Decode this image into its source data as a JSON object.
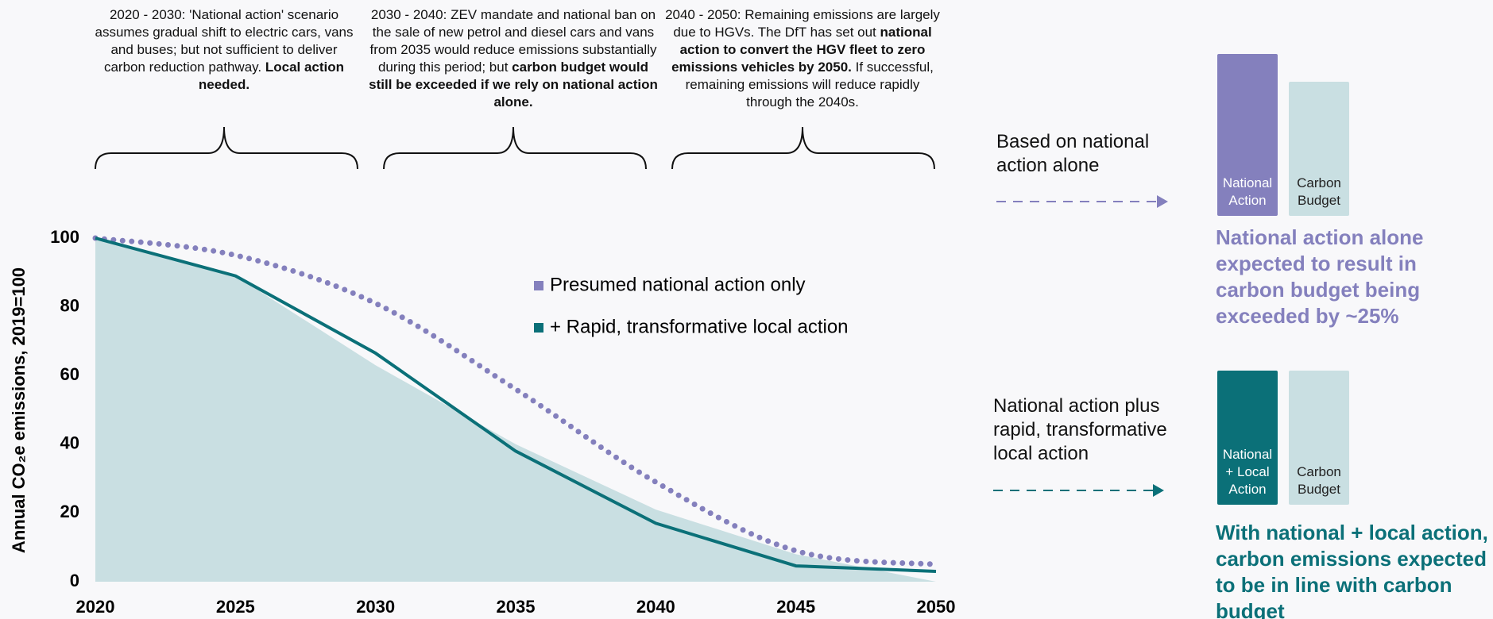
{
  "chart_data": {
    "type": "line",
    "y_label": "Annual CO₂e emissions, 2019=100",
    "x": [
      2020,
      2025,
      2030,
      2035,
      2040,
      2045,
      2050
    ],
    "xlim": [
      2020,
      2050
    ],
    "xticks": [
      2020,
      2025,
      2030,
      2035,
      2040,
      2045,
      2050
    ],
    "ylim": [
      0,
      100
    ],
    "yticks": [
      0,
      20,
      40,
      60,
      80,
      100
    ],
    "area": {
      "color": "#c9dfe2",
      "values": [
        100,
        89,
        63,
        40,
        21,
        8,
        0
      ]
    },
    "series": [
      {
        "name": "Presumed national action only",
        "color": "#8480bd",
        "style": "dotted",
        "values": [
          100,
          95,
          81,
          56,
          29,
          9,
          5
        ]
      },
      {
        "name": "+ Rapid, transformative local action",
        "color": "#0b7078",
        "style": "solid",
        "values": [
          100,
          89,
          66.5,
          38,
          17,
          4.6,
          3
        ]
      }
    ]
  },
  "annotations": [
    {
      "runs": [
        {
          "text": "2020 - 2030: 'National action' scenario assumes gradual shift to electric cars, vans and buses; but not sufficient to deliver carbon reduction pathway. ",
          "bold": false
        },
        {
          "text": "Local action needed.",
          "bold": true
        }
      ]
    },
    {
      "runs": [
        {
          "text": "2030 - 2040: ZEV mandate and national ban on the sale of new petrol and diesel cars and vans from 2035 would reduce emissions substantially during this period; but ",
          "bold": false
        },
        {
          "text": "carbon budget would still be exceeded if we rely on national action alone.",
          "bold": true
        }
      ]
    },
    {
      "runs": [
        {
          "text": "2040 - 2050: Remaining emissions are largely due to HGVs. The DfT has set out ",
          "bold": false
        },
        {
          "text": "national action to convert the HGV fleet to zero emissions vehicles by 2050.",
          "bold": true
        },
        {
          "text": " If successful, remaining emissions will reduce rapidly through the 2040s.",
          "bold": false
        }
      ]
    }
  ],
  "panels": [
    {
      "text": "Based on national action alone",
      "color": "#8480bd",
      "bars": [
        {
          "label": "National Action",
          "value": 121,
          "color": "#8480bd",
          "text_color": "#ffffff"
        },
        {
          "label": "Carbon Budget",
          "value": 100,
          "color": "#c9dfe2",
          "text_color": "#222222"
        }
      ],
      "conclusion": "National action alone expected to result in carbon budget being exceeded by ~25%"
    },
    {
      "text": "National action plus rapid, transformative local action",
      "color": "#0b7078",
      "bars": [
        {
          "label": "National + Local Action",
          "value": 100,
          "color": "#0b7078",
          "text_color": "#ffffff"
        },
        {
          "label": "Carbon Budget",
          "value": 100,
          "color": "#c9dfe2",
          "text_color": "#222222"
        }
      ],
      "conclusion": "With national + local action, carbon emissions expected to be in line with carbon budget"
    }
  ]
}
